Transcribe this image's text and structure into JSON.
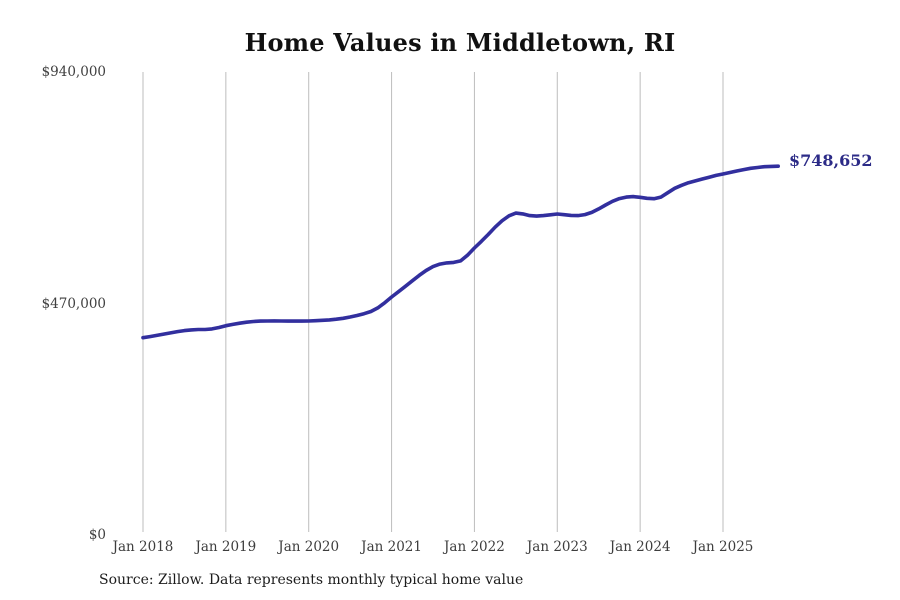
{
  "header": {
    "title": "Home Values in Middletown, RI"
  },
  "footer": {
    "source": "Source: Zillow. Data represents monthly typical home value"
  },
  "colors": {
    "line": "#322f9e",
    "end_label": "#2c2b87",
    "grid": "#bdbdbd",
    "axis_text": "#404040",
    "title_text": "#111111"
  },
  "chart_data": {
    "type": "line",
    "title": "Home Values in Middletown, RI",
    "xlabel": "",
    "ylabel": "",
    "ylim": [
      0,
      940000
    ],
    "grid": "vertical-yearly",
    "legend": "none",
    "y_ticks": [
      {
        "label": "$0",
        "value": 0
      },
      {
        "label": "$470,000",
        "value": 470000
      },
      {
        "label": "$940,000",
        "value": 940000
      }
    ],
    "x_tick_labels": [
      "Jan 2018",
      "Jan 2019",
      "Jan 2020",
      "Jan 2021",
      "Jan 2022",
      "Jan 2023",
      "Jan 2024",
      "Jan 2025"
    ],
    "end_label": "$748,652",
    "final_value": 748652,
    "x": [
      "2018-01",
      "2018-02",
      "2018-03",
      "2018-04",
      "2018-05",
      "2018-06",
      "2018-07",
      "2018-08",
      "2018-09",
      "2018-10",
      "2018-11",
      "2018-12",
      "2019-01",
      "2019-02",
      "2019-03",
      "2019-04",
      "2019-05",
      "2019-06",
      "2019-07",
      "2019-08",
      "2019-09",
      "2019-10",
      "2019-11",
      "2019-12",
      "2020-01",
      "2020-02",
      "2020-03",
      "2020-04",
      "2020-05",
      "2020-06",
      "2020-07",
      "2020-08",
      "2020-09",
      "2020-10",
      "2020-11",
      "2020-12",
      "2021-01",
      "2021-02",
      "2021-03",
      "2021-04",
      "2021-05",
      "2021-06",
      "2021-07",
      "2021-08",
      "2021-09",
      "2021-10",
      "2021-11",
      "2021-12",
      "2022-01",
      "2022-02",
      "2022-03",
      "2022-04",
      "2022-05",
      "2022-06",
      "2022-07",
      "2022-08",
      "2022-09",
      "2022-10",
      "2022-11",
      "2022-12",
      "2023-01",
      "2023-02",
      "2023-03",
      "2023-04",
      "2023-05",
      "2023-06",
      "2023-07",
      "2023-08",
      "2023-09",
      "2023-10",
      "2023-11",
      "2023-12",
      "2024-01",
      "2024-02",
      "2024-03",
      "2024-04",
      "2024-05",
      "2024-06",
      "2024-07",
      "2024-08",
      "2024-09",
      "2024-10",
      "2024-11",
      "2024-12",
      "2025-01",
      "2025-02",
      "2025-03",
      "2025-04",
      "2025-05",
      "2025-06",
      "2025-07",
      "2025-08",
      "2025-09"
    ],
    "series": [
      {
        "name": "Typical home value",
        "values": [
          400600,
          402800,
          405200,
          407800,
          410400,
          412900,
          415000,
          416500,
          417200,
          417300,
          418500,
          421300,
          424900,
          427500,
          430000,
          432000,
          433500,
          434200,
          434500,
          434600,
          434500,
          434300,
          434200,
          434300,
          434500,
          435000,
          435800,
          436800,
          438200,
          440000,
          442500,
          445600,
          449300,
          453800,
          461000,
          471500,
          483200,
          494000,
          505000,
          516000,
          527000,
          537000,
          545000,
          550000,
          552500,
          553500,
          556500,
          568000,
          582700,
          596000,
          610000,
          625000,
          638000,
          648000,
          653500,
          652000,
          648500,
          647500,
          648500,
          650000,
          651700,
          650300,
          648800,
          648500,
          650500,
          655000,
          662000,
          670000,
          677500,
          683000,
          686000,
          687000,
          685600,
          683500,
          682800,
          686000,
          695000,
          703900,
          710000,
          715300,
          719000,
          722700,
          726500,
          730000,
          732900,
          736000,
          739000,
          741800,
          744400,
          746200,
          747700,
          748300,
          748652
        ]
      }
    ]
  }
}
